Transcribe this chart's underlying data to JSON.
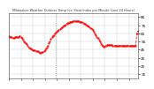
{
  "title": "Milwaukee Weather Outdoor Temp (vs) Heat Index per Minute (Last 24 Hours)",
  "bg_color": "#ffffff",
  "plot_bg": "#ffffff",
  "line_color": "#ff0000",
  "grid_color": "#cccccc",
  "y_min": 10,
  "y_max": 90,
  "yticks": [
    15,
    25,
    35,
    45,
    55,
    65,
    75,
    85
  ],
  "y_values": [
    62,
    61,
    60,
    60,
    59,
    59,
    60,
    61,
    60,
    60,
    61,
    62,
    60,
    59,
    57,
    55,
    54,
    53,
    52,
    50,
    48,
    47,
    46,
    45,
    44,
    44,
    44,
    43,
    43,
    43,
    42,
    41,
    41,
    42,
    42,
    43,
    44,
    46,
    48,
    50,
    53,
    55,
    58,
    60,
    62,
    63,
    65,
    66,
    67,
    68,
    69,
    70,
    71,
    72,
    73,
    74,
    75,
    76,
    77,
    78,
    78,
    79,
    79,
    79,
    80,
    80,
    80,
    80,
    80,
    80,
    80,
    79,
    79,
    79,
    78,
    77,
    77,
    76,
    75,
    74,
    73,
    72,
    71,
    70,
    69,
    67,
    65,
    63,
    61,
    59,
    57,
    55,
    53,
    51,
    50,
    49,
    49,
    50,
    51,
    51,
    51,
    51,
    51,
    51,
    50,
    50,
    50,
    50,
    50,
    50,
    50,
    50,
    50,
    50,
    50,
    50,
    50,
    50,
    50,
    50,
    50,
    50,
    50,
    50,
    50,
    50,
    50,
    50,
    65,
    68
  ],
  "vline_idx": 47
}
